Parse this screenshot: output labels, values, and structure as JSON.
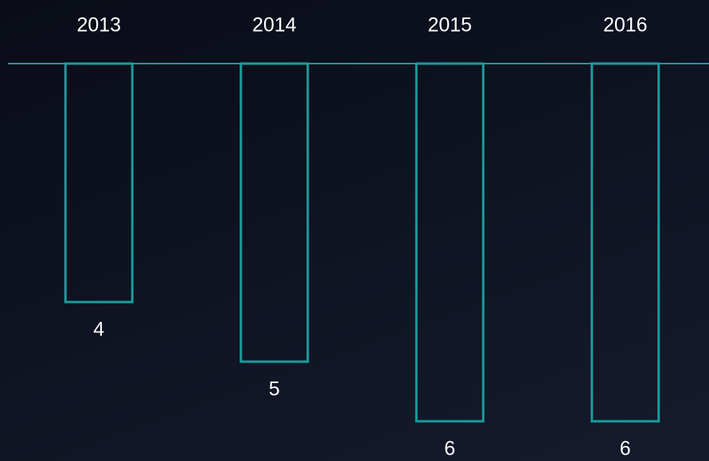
{
  "chart_data": {
    "type": "bar",
    "categories": [
      "2013",
      "2014",
      "2015",
      "2016"
    ],
    "values": [
      4,
      5,
      6,
      6
    ],
    "color": "#1a9c9c",
    "ylim": [
      0,
      6
    ]
  }
}
